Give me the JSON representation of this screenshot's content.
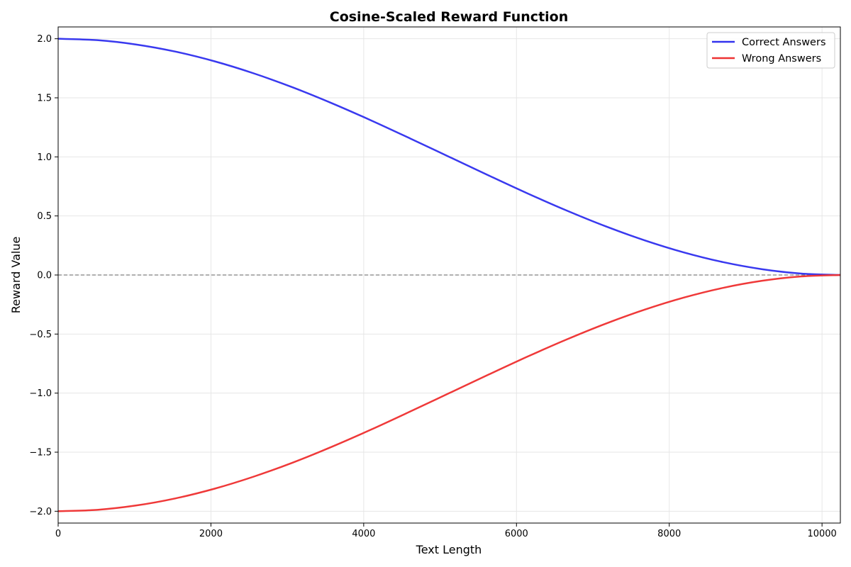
{
  "chart_data": {
    "type": "line",
    "title": "Cosine-Scaled Reward Function",
    "xlabel": "Text Length",
    "ylabel": "Reward Value",
    "xlim": [
      0,
      10240
    ],
    "ylim": [
      -2.1,
      2.1
    ],
    "xticks": [
      0,
      2000,
      4000,
      6000,
      8000,
      10000
    ],
    "yticks": [
      -2.0,
      -1.5,
      -1.0,
      -0.5,
      0.0,
      0.5,
      1.0,
      1.5,
      2.0
    ],
    "xtick_labels": [
      "0",
      "2000",
      "4000",
      "6000",
      "8000",
      "10000"
    ],
    "ytick_labels": [
      "−2.0",
      "−1.5",
      "−1.0",
      "−0.5",
      "0.0",
      "0.5",
      "1.0",
      "1.5",
      "2.0"
    ],
    "grid": true,
    "legend_position": "top-right",
    "reference_line": {
      "y": 0.0,
      "style": "dashed",
      "color": "#808080"
    },
    "series": [
      {
        "name": "Correct Answers",
        "color": "#3333ee",
        "x": [
          0,
          512,
          1024,
          1536,
          2048,
          2560,
          3072,
          3584,
          4096,
          4608,
          5120,
          5632,
          6144,
          6656,
          7168,
          7680,
          8192,
          8704,
          9216,
          9728,
          10240
        ],
        "y": [
          2.0,
          1.988,
          1.951,
          1.891,
          1.809,
          1.707,
          1.588,
          1.454,
          1.309,
          1.156,
          1.0,
          0.844,
          0.691,
          0.546,
          0.412,
          0.293,
          0.191,
          0.109,
          0.049,
          0.012,
          0.0
        ]
      },
      {
        "name": "Wrong Answers",
        "color": "#ee3333",
        "x": [
          0,
          512,
          1024,
          1536,
          2048,
          2560,
          3072,
          3584,
          4096,
          4608,
          5120,
          5632,
          6144,
          6656,
          7168,
          7680,
          8192,
          8704,
          9216,
          9728,
          10240
        ],
        "y": [
          -2.0,
          -1.988,
          -1.951,
          -1.891,
          -1.809,
          -1.707,
          -1.588,
          -1.454,
          -1.309,
          -1.156,
          -1.0,
          -0.844,
          -0.691,
          -0.546,
          -0.412,
          -0.293,
          -0.191,
          -0.109,
          -0.049,
          -0.012,
          0.0
        ]
      }
    ]
  }
}
